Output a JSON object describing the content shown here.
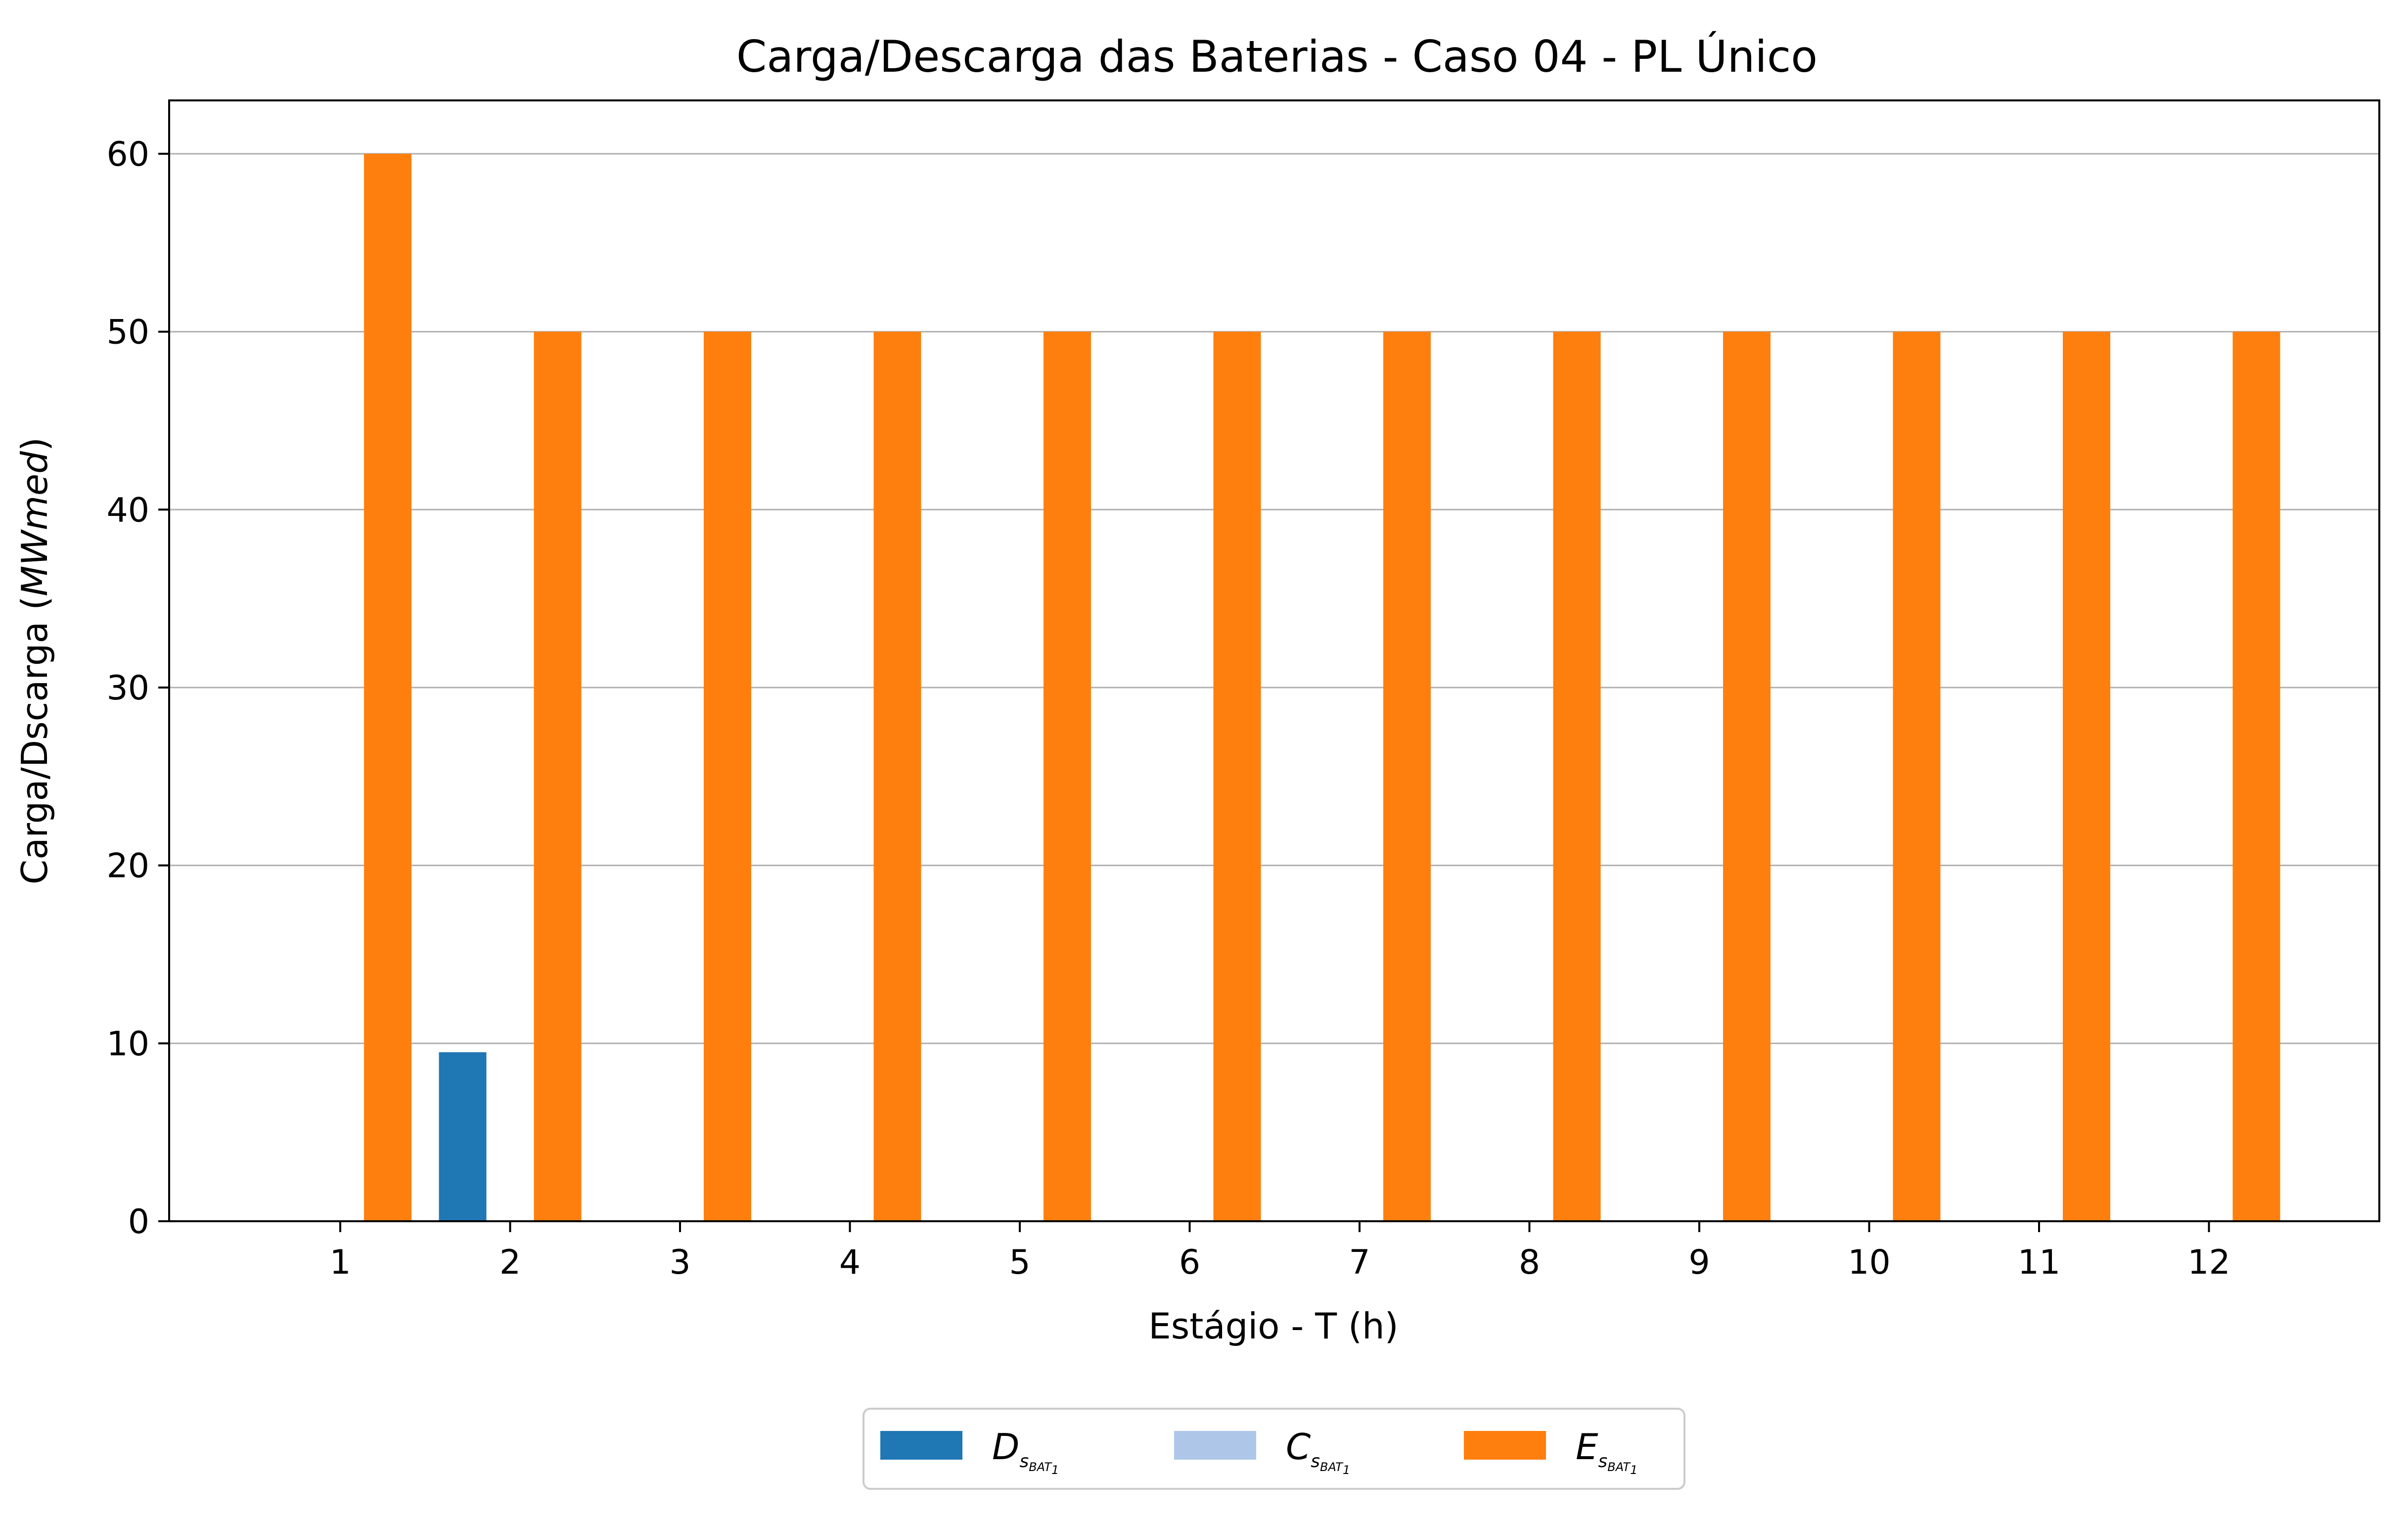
{
  "chart_data": {
    "type": "bar",
    "title": "Carga/Descarga das Baterias - Caso 04 - PL Único",
    "xlabel": "Estágio - T (h)",
    "ylabel_main": "Carga/Dscarga (",
    "ylabel_unit": "MWmed",
    "ylabel_close": ")",
    "categories": [
      "1",
      "2",
      "3",
      "4",
      "5",
      "6",
      "7",
      "8",
      "9",
      "10",
      "11",
      "12"
    ],
    "ylim": [
      0,
      63
    ],
    "yticks": [
      0,
      10,
      20,
      30,
      40,
      50,
      60
    ],
    "grid": "y",
    "legend_position": "bottom-center",
    "series": [
      {
        "symbol": "D",
        "sub": "s",
        "subsub_base": "BAT",
        "subsub_index": "1",
        "color": "#1f77b4",
        "values": [
          0,
          9.5,
          0,
          0,
          0,
          0,
          0,
          0,
          0,
          0,
          0,
          0
        ]
      },
      {
        "symbol": "C",
        "sub": "s",
        "subsub_base": "BAT",
        "subsub_index": "1",
        "color": "#aec7e8",
        "values": [
          0,
          0,
          0,
          0,
          0,
          0,
          0,
          0,
          0,
          0,
          0,
          0
        ]
      },
      {
        "symbol": "E",
        "sub": "s",
        "subsub_base": "BAT",
        "subsub_index": "1",
        "color": "#ff7f0e",
        "values": [
          60,
          50,
          50,
          50,
          50,
          50,
          50,
          50,
          50,
          50,
          50,
          50
        ]
      }
    ]
  }
}
